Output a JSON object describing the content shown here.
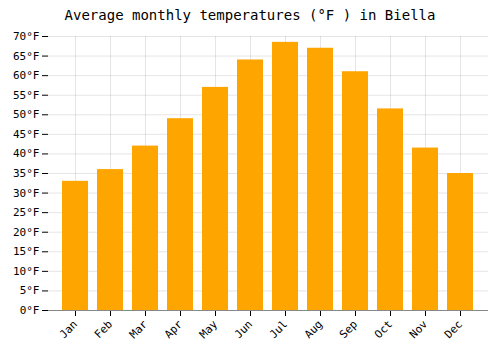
{
  "chart_data": {
    "type": "bar",
    "title": "Average monthly temperatures (°F ) in Biella",
    "categories": [
      "Jan",
      "Feb",
      "Mar",
      "Apr",
      "May",
      "Jun",
      "Jul",
      "Aug",
      "Sep",
      "Oct",
      "Nov",
      "Dec"
    ],
    "values": [
      33,
      36,
      42,
      49,
      57,
      64,
      68.5,
      67,
      61,
      51.5,
      41.5,
      35
    ],
    "color": "#FFA500",
    "ylim": [
      0,
      70
    ],
    "yticks": [
      {
        "value": 0,
        "label": "0°F"
      },
      {
        "value": 5,
        "label": "5°F"
      },
      {
        "value": 10,
        "label": "10°F"
      },
      {
        "value": 15,
        "label": "15°F"
      },
      {
        "value": 20,
        "label": "20°F"
      },
      {
        "value": 25,
        "label": "25°F"
      },
      {
        "value": 30,
        "label": "30°F"
      },
      {
        "value": 35,
        "label": "35°F"
      },
      {
        "value": 40,
        "label": "40°F"
      },
      {
        "value": 45,
        "label": "45°F"
      },
      {
        "value": 50,
        "label": "50°F"
      },
      {
        "value": 55,
        "label": "55°F"
      },
      {
        "value": 60,
        "label": "60°F"
      },
      {
        "value": 65,
        "label": "65°F"
      },
      {
        "value": 70,
        "label": "70°F"
      }
    ],
    "grid": true
  }
}
